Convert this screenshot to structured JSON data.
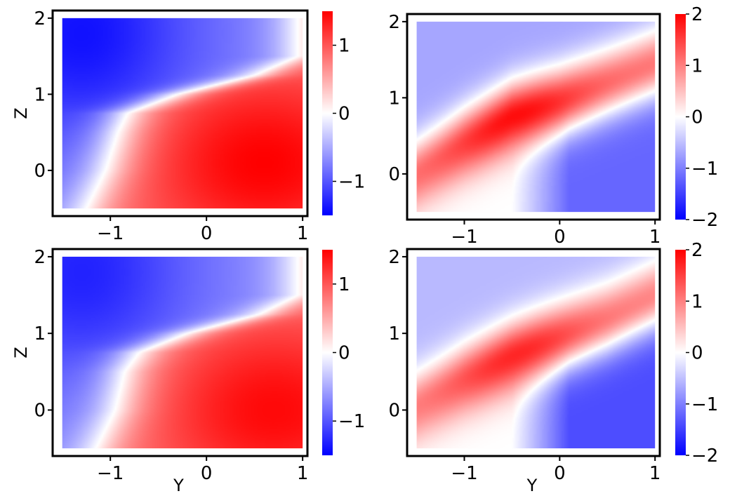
{
  "chart_data": [
    {
      "type": "heatmap",
      "panel": "top-left",
      "title": "",
      "xlabel": "",
      "ylabel": "Z",
      "xlim": [
        -1.6,
        1.05
      ],
      "ylim": [
        -0.6,
        2.1
      ],
      "data_xrange": [
        -1.5,
        1.0
      ],
      "data_yrange": [
        -0.5,
        2.0
      ],
      "xticks": [
        -1,
        0,
        1
      ],
      "yticks": [
        0,
        1,
        2
      ],
      "xtick_labels": [
        "−1",
        "0",
        "1"
      ],
      "ytick_labels": [
        "0",
        "1",
        "2"
      ],
      "colormap": "bwr",
      "clim": [
        -1.5,
        1.5
      ],
      "colorbar_ticks": [
        -1,
        0,
        1
      ],
      "colorbar_tick_labels": [
        "−1",
        "0",
        "1"
      ],
      "field": {
        "boundary_Y_at_Z": [
          [
            -0.5,
            -1.25
          ],
          [
            0.0,
            -1.05
          ],
          [
            0.5,
            -0.92
          ],
          [
            0.75,
            -0.82
          ],
          [
            1.0,
            -0.3
          ],
          [
            1.25,
            0.5
          ],
          [
            1.5,
            0.95
          ]
        ],
        "peak_Y": 0.6,
        "peak_Z": 0.1,
        "min_Y": -1.3,
        "min_Z": 1.8,
        "peak_value": 1.5,
        "min_value": -1.4
      }
    },
    {
      "type": "heatmap",
      "panel": "top-right",
      "title": "",
      "xlabel": "",
      "ylabel": "",
      "xlim": [
        -1.6,
        1.05
      ],
      "ylim": [
        -0.6,
        2.1
      ],
      "data_xrange": [
        -1.5,
        1.0
      ],
      "data_yrange": [
        -0.5,
        2.0
      ],
      "xticks": [
        -1,
        0,
        1
      ],
      "yticks": [
        0,
        1,
        2
      ],
      "xtick_labels": [
        "−1",
        "0",
        "1"
      ],
      "ytick_labels": [
        "0",
        "1",
        "2"
      ],
      "colormap": "bwr",
      "clim": [
        -2,
        2
      ],
      "colorbar_ticks": [
        -2,
        -1,
        0,
        1,
        2
      ],
      "colorbar_tick_labels": [
        "−2",
        "−1",
        "0",
        "1",
        "2"
      ],
      "field": {
        "band_centerline": [
          [
            -1.5,
            0.0
          ],
          [
            -1.0,
            0.4
          ],
          [
            -0.5,
            0.75
          ],
          [
            0.0,
            0.95
          ],
          [
            0.5,
            1.2
          ],
          [
            1.0,
            1.45
          ]
        ],
        "band_peak_value": 1.9,
        "lower_right_value": -1.2,
        "upper_left_value": -0.7
      }
    },
    {
      "type": "heatmap",
      "panel": "bottom-left",
      "title": "",
      "xlabel": "Y",
      "ylabel": "Z",
      "xlim": [
        -1.6,
        1.05
      ],
      "ylim": [
        -0.6,
        2.1
      ],
      "data_xrange": [
        -1.5,
        1.0
      ],
      "data_yrange": [
        -0.5,
        2.0
      ],
      "xticks": [
        -1,
        0,
        1
      ],
      "yticks": [
        0,
        1,
        2
      ],
      "xtick_labels": [
        "−1",
        "0",
        "1"
      ],
      "ytick_labels": [
        "0",
        "1",
        "2"
      ],
      "colormap": "bwr",
      "clim": [
        -1.5,
        1.5
      ],
      "colorbar_ticks": [
        -1,
        0,
        1
      ],
      "colorbar_tick_labels": [
        "−1",
        "0",
        "1"
      ],
      "field": {
        "boundary_Y_at_Z": [
          [
            -0.5,
            -1.15
          ],
          [
            0.0,
            -0.95
          ],
          [
            0.5,
            -0.85
          ],
          [
            0.75,
            -0.7
          ],
          [
            1.0,
            -0.2
          ],
          [
            1.25,
            0.55
          ],
          [
            1.5,
            0.95
          ]
        ],
        "peak_Y": 0.7,
        "peak_Z": 0.0,
        "min_Y": -1.3,
        "min_Z": 1.8,
        "peak_value": 1.45,
        "min_value": -1.3
      }
    },
    {
      "type": "heatmap",
      "panel": "bottom-right",
      "title": "",
      "xlabel": "Y",
      "ylabel": "",
      "xlim": [
        -1.6,
        1.05
      ],
      "ylim": [
        -0.6,
        2.1
      ],
      "data_xrange": [
        -1.5,
        1.0
      ],
      "data_yrange": [
        -0.5,
        2.0
      ],
      "xticks": [
        -1,
        0,
        1
      ],
      "yticks": [
        0,
        1,
        2
      ],
      "xtick_labels": [
        "−1",
        "0",
        "1"
      ],
      "ytick_labels": [
        "0",
        "1",
        "2"
      ],
      "colormap": "bwr",
      "clim": [
        -2,
        2
      ],
      "colorbar_ticks": [
        -2,
        -1,
        0,
        1,
        2
      ],
      "colorbar_tick_labels": [
        "−2",
        "−1",
        "0",
        "1",
        "2"
      ],
      "field": {
        "band_centerline": [
          [
            -1.5,
            0.05
          ],
          [
            -1.0,
            0.4
          ],
          [
            -0.5,
            0.7
          ],
          [
            0.0,
            0.95
          ],
          [
            0.5,
            1.2
          ],
          [
            1.0,
            1.5
          ]
        ],
        "band_peak_value": 1.7,
        "lower_right_value": -1.4,
        "upper_left_value": -0.55
      }
    }
  ]
}
